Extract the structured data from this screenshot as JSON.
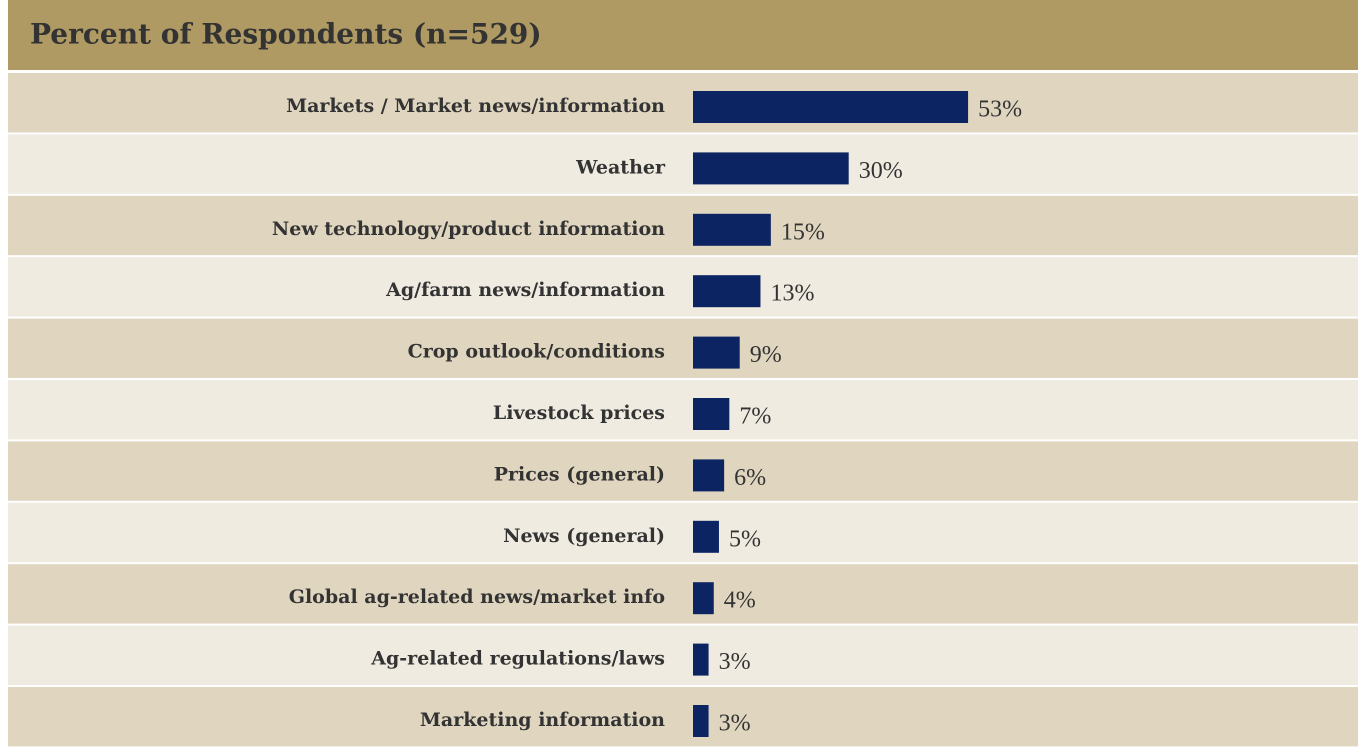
{
  "chart_data": {
    "type": "bar",
    "title": "Percent of Respondents (n=529)",
    "categories": [
      "Markets / Market news/information",
      "Weather",
      "New technology/product information",
      "Ag/farm news/information",
      "Crop outlook/conditions",
      "Livestock prices",
      "Prices (general)",
      "News (general)",
      "Global ag-related news/market info",
      "Ag-related regulations/laws",
      "Marketing information"
    ],
    "values": [
      53,
      30,
      15,
      13,
      9,
      7,
      6,
      5,
      4,
      3,
      3
    ],
    "value_labels": [
      "53%",
      "30%",
      "15%",
      "13%",
      "9%",
      "7%",
      "6%",
      "5%",
      "4%",
      "3%",
      "3%"
    ],
    "color": "#0c2461"
  }
}
